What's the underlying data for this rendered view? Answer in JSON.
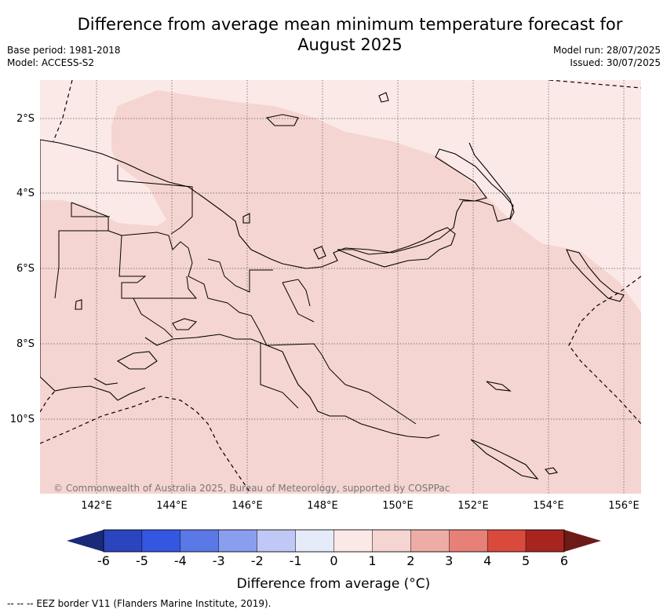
{
  "title": "Difference from average mean minimum temperature forecast for August 2025",
  "meta": {
    "base_period": "Base period: 1981-2018",
    "model": "Model: ACCESS-S2",
    "model_run": "Model run: 28/07/2025",
    "issued": "Issued: 30/07/2025"
  },
  "map": {
    "lat_labels": [
      "2°S",
      "4°S",
      "6°S",
      "8°S",
      "10°S"
    ],
    "lon_labels": [
      "142°E",
      "144°E",
      "146°E",
      "148°E",
      "150°E",
      "152°E",
      "154°E",
      "156°E"
    ],
    "copyright": "© Commonwealth of Australia 2025, Bureau of Meteorology, supported by COSPPac",
    "fill_colors": {
      "0_to_1": "#fbe9e7",
      "1_to_2": "#f5d5d1"
    }
  },
  "colorbar": {
    "ticks": [
      "-6",
      "-5",
      "-4",
      "-3",
      "-2",
      "-1",
      "0",
      "1",
      "2",
      "3",
      "4",
      "5",
      "6"
    ],
    "colors": [
      "#1a2a78",
      "#2a45bd",
      "#3556e0",
      "#5a78e6",
      "#8a9ef0",
      "#c0c9f5",
      "#e6ebfa",
      "#fbe9e7",
      "#f5d5d1",
      "#eeaca6",
      "#e78178",
      "#d94a3d",
      "#a8251f",
      "#6e1a16"
    ],
    "label": "Difference from average (°C)"
  },
  "footnote": "-- -- -- EEZ border V11 (Flanders Marine Institute, 2019)."
}
